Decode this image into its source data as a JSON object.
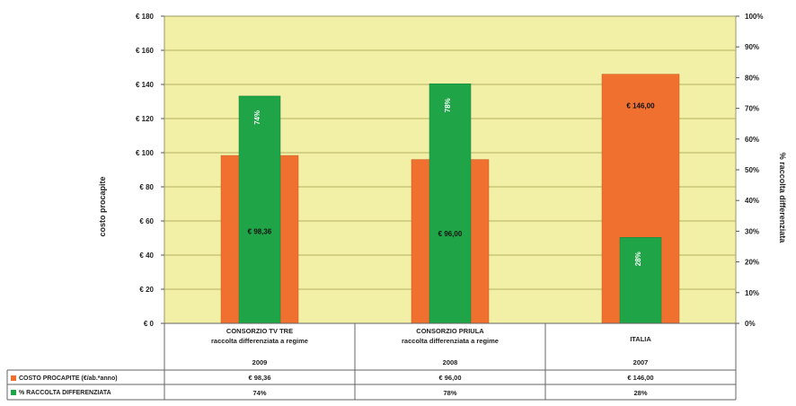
{
  "chart_data": {
    "type": "bar",
    "categories": [
      {
        "line1": "CONSORZIO TV TRE",
        "line2": "raccolta differenziata a regime",
        "year": "2009"
      },
      {
        "line1": "CONSORZIO PRIULA",
        "line2": "raccolta differenziata a regime",
        "year": "2008"
      },
      {
        "line1": "ITALIA",
        "line2": "",
        "year": "2007"
      }
    ],
    "series": [
      {
        "name": "COSTO PROCAPITE (€/ab.*anno)",
        "axis": "left",
        "color": "#F07030",
        "values": [
          98.36,
          96.0,
          146.0
        ],
        "labels": [
          "€ 98,36",
          "€ 96,00",
          "€ 146,00"
        ]
      },
      {
        "name": "% RACCOLTA DIFFERENZIATA",
        "axis": "right",
        "color": "#1FA547",
        "values": [
          74,
          78,
          28
        ],
        "labels": [
          "74%",
          "78%",
          "28%"
        ]
      }
    ],
    "ylabel": "costo procapite",
    "y2label": "% raccolta differenziata",
    "ylim": [
      0,
      180
    ],
    "y2lim": [
      0,
      100
    ],
    "yticks": [
      "€ 0",
      "€ 20",
      "€ 40",
      "€ 60",
      "€ 80",
      "€ 100",
      "€ 120",
      "€ 140",
      "€ 160",
      "€ 180"
    ],
    "y2ticks": [
      "0%",
      "10%",
      "20%",
      "30%",
      "40%",
      "50%",
      "60%",
      "70%",
      "80%",
      "90%",
      "100%"
    ],
    "grid": true,
    "legend": "data-table-below",
    "colors": {
      "plot_background": "#F2F0A6",
      "gridline": "#B5B060"
    }
  }
}
